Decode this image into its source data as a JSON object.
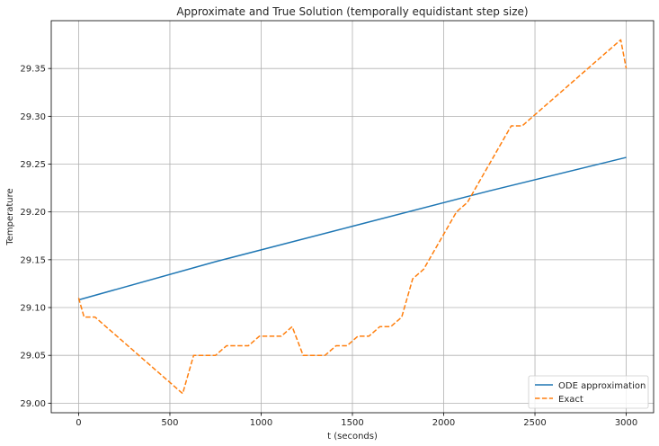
{
  "chart_data": {
    "type": "line",
    "title": "Approximate and True Solution (temporally equidistant step size)",
    "xlabel": "t (seconds)",
    "ylabel": "Temperature",
    "xlim": [
      -150,
      3150
    ],
    "ylim": [
      28.99,
      29.4
    ],
    "xticks": [
      0,
      500,
      1000,
      1500,
      2000,
      2500,
      3000
    ],
    "yticks": [
      29.0,
      29.05,
      29.1,
      29.15,
      29.2,
      29.25,
      29.3,
      29.35
    ],
    "ytick_labels": [
      "29.00",
      "29.05",
      "29.10",
      "29.15",
      "29.20",
      "29.25",
      "29.30",
      "29.35"
    ],
    "grid": true,
    "legend_position": "lower-right",
    "series": [
      {
        "name": "ODE approximation",
        "color": "#1f77b4",
        "style": "solid",
        "x": [
          0,
          750,
          1500,
          2250,
          3000
        ],
        "y": [
          29.108,
          29.148,
          29.185,
          29.222,
          29.257
        ]
      },
      {
        "name": "Exact",
        "color": "#ff7f0e",
        "style": "dashed",
        "x": [
          0,
          30,
          90,
          570,
          630,
          750,
          810,
          930,
          990,
          1110,
          1170,
          1230,
          1350,
          1410,
          1470,
          1530,
          1590,
          1650,
          1710,
          1770,
          1830,
          1890,
          2070,
          2130,
          2370,
          2430,
          2970,
          3000
        ],
        "y": [
          29.11,
          29.09,
          29.09,
          29.01,
          29.05,
          29.05,
          29.06,
          29.06,
          29.07,
          29.07,
          29.08,
          29.05,
          29.05,
          29.06,
          29.06,
          29.07,
          29.07,
          29.08,
          29.08,
          29.09,
          29.13,
          29.14,
          29.2,
          29.21,
          29.29,
          29.29,
          29.38,
          29.35
        ]
      }
    ]
  }
}
